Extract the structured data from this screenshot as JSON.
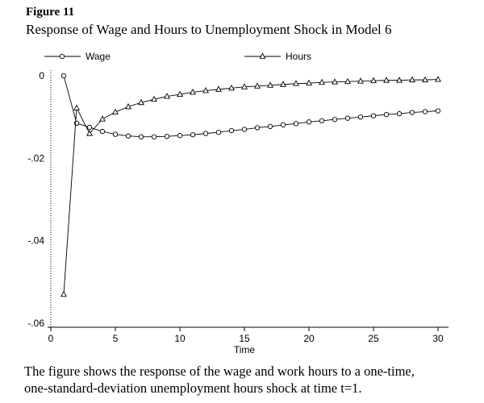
{
  "figure": {
    "label": "Figure 11",
    "title": "Response of Wage and Hours to Unemployment Shock in Model 6",
    "caption_lines": [
      "The figure shows the response of the wage and work hours to a one-time,",
      "one-standard-deviation unemployment hours shock at time t=1."
    ]
  },
  "chart_data": {
    "type": "line",
    "title": "Response of Wage and Hours to Unemployment Shock in Model 6",
    "xlabel": "Time",
    "ylabel": "",
    "xlim": [
      0,
      31
    ],
    "ylim": [
      -0.062,
      0.002
    ],
    "grid": false,
    "legend_position": "top",
    "xticks": [
      0,
      5,
      10,
      15,
      20,
      25,
      30
    ],
    "yticks": [
      {
        "label": "0",
        "value": 0
      },
      {
        "label": "-.02",
        "value": -0.02
      },
      {
        "label": "-.04",
        "value": -0.04
      },
      {
        "label": "-.06",
        "value": -0.06
      }
    ],
    "x": [
      1,
      2,
      3,
      4,
      5,
      6,
      7,
      8,
      9,
      10,
      11,
      12,
      13,
      14,
      15,
      16,
      17,
      18,
      19,
      20,
      21,
      22,
      23,
      24,
      25,
      26,
      27,
      28,
      29,
      30
    ],
    "series": [
      {
        "name": "Wage",
        "marker": "circle",
        "color": "#000000",
        "values": [
          0,
          -0.0115,
          -0.0125,
          -0.0135,
          -0.0142,
          -0.0146,
          -0.0148,
          -0.0148,
          -0.0147,
          -0.0145,
          -0.0143,
          -0.014,
          -0.0137,
          -0.0133,
          -0.013,
          -0.0126,
          -0.0123,
          -0.0119,
          -0.0116,
          -0.0112,
          -0.0109,
          -0.0106,
          -0.0103,
          -0.01,
          -0.0097,
          -0.0094,
          -0.0092,
          -0.0089,
          -0.0087,
          -0.0085
        ]
      },
      {
        "name": "Hours",
        "marker": "triangle",
        "color": "#000000",
        "values": [
          -0.053,
          -0.0078,
          -0.014,
          -0.0105,
          -0.0088,
          -0.0075,
          -0.0065,
          -0.0057,
          -0.005,
          -0.0045,
          -0.004,
          -0.0036,
          -0.0033,
          -0.003,
          -0.0027,
          -0.0025,
          -0.0023,
          -0.0021,
          -0.0019,
          -0.0018,
          -0.0016,
          -0.0015,
          -0.0014,
          -0.0013,
          -0.0012,
          -0.0011,
          -0.0011,
          -0.001,
          -0.001,
          -0.0009
        ]
      }
    ]
  }
}
